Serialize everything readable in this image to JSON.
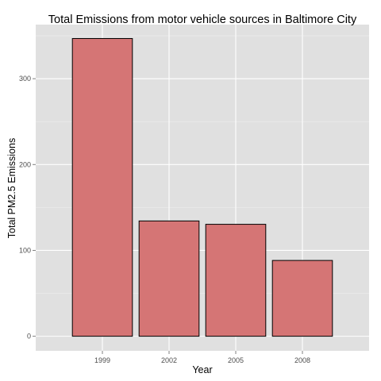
{
  "chart_data": {
    "type": "bar",
    "title": "Total Emissions from  motor vehicle sources in Baltimore City",
    "xlabel": "Year",
    "ylabel": "Total PM2.5 Emissions",
    "categories": [
      "1999",
      "2002",
      "2005",
      "2008"
    ],
    "values": [
      346.8,
      134.3,
      130.4,
      88.3
    ],
    "ylim": [
      -17,
      363
    ],
    "yticks": [
      0,
      100,
      200,
      300
    ],
    "yticklabels": [
      "0",
      "100",
      "200",
      "300"
    ],
    "grid": true,
    "legend": "none",
    "colors": {
      "panel_background": "#e0e0e0",
      "grid_major": "#ffffff",
      "grid_minor": "#eeeeee",
      "bar_fill": "#d57575",
      "bar_outline": "#000000",
      "tick_mark": "#7f7f7f"
    }
  }
}
